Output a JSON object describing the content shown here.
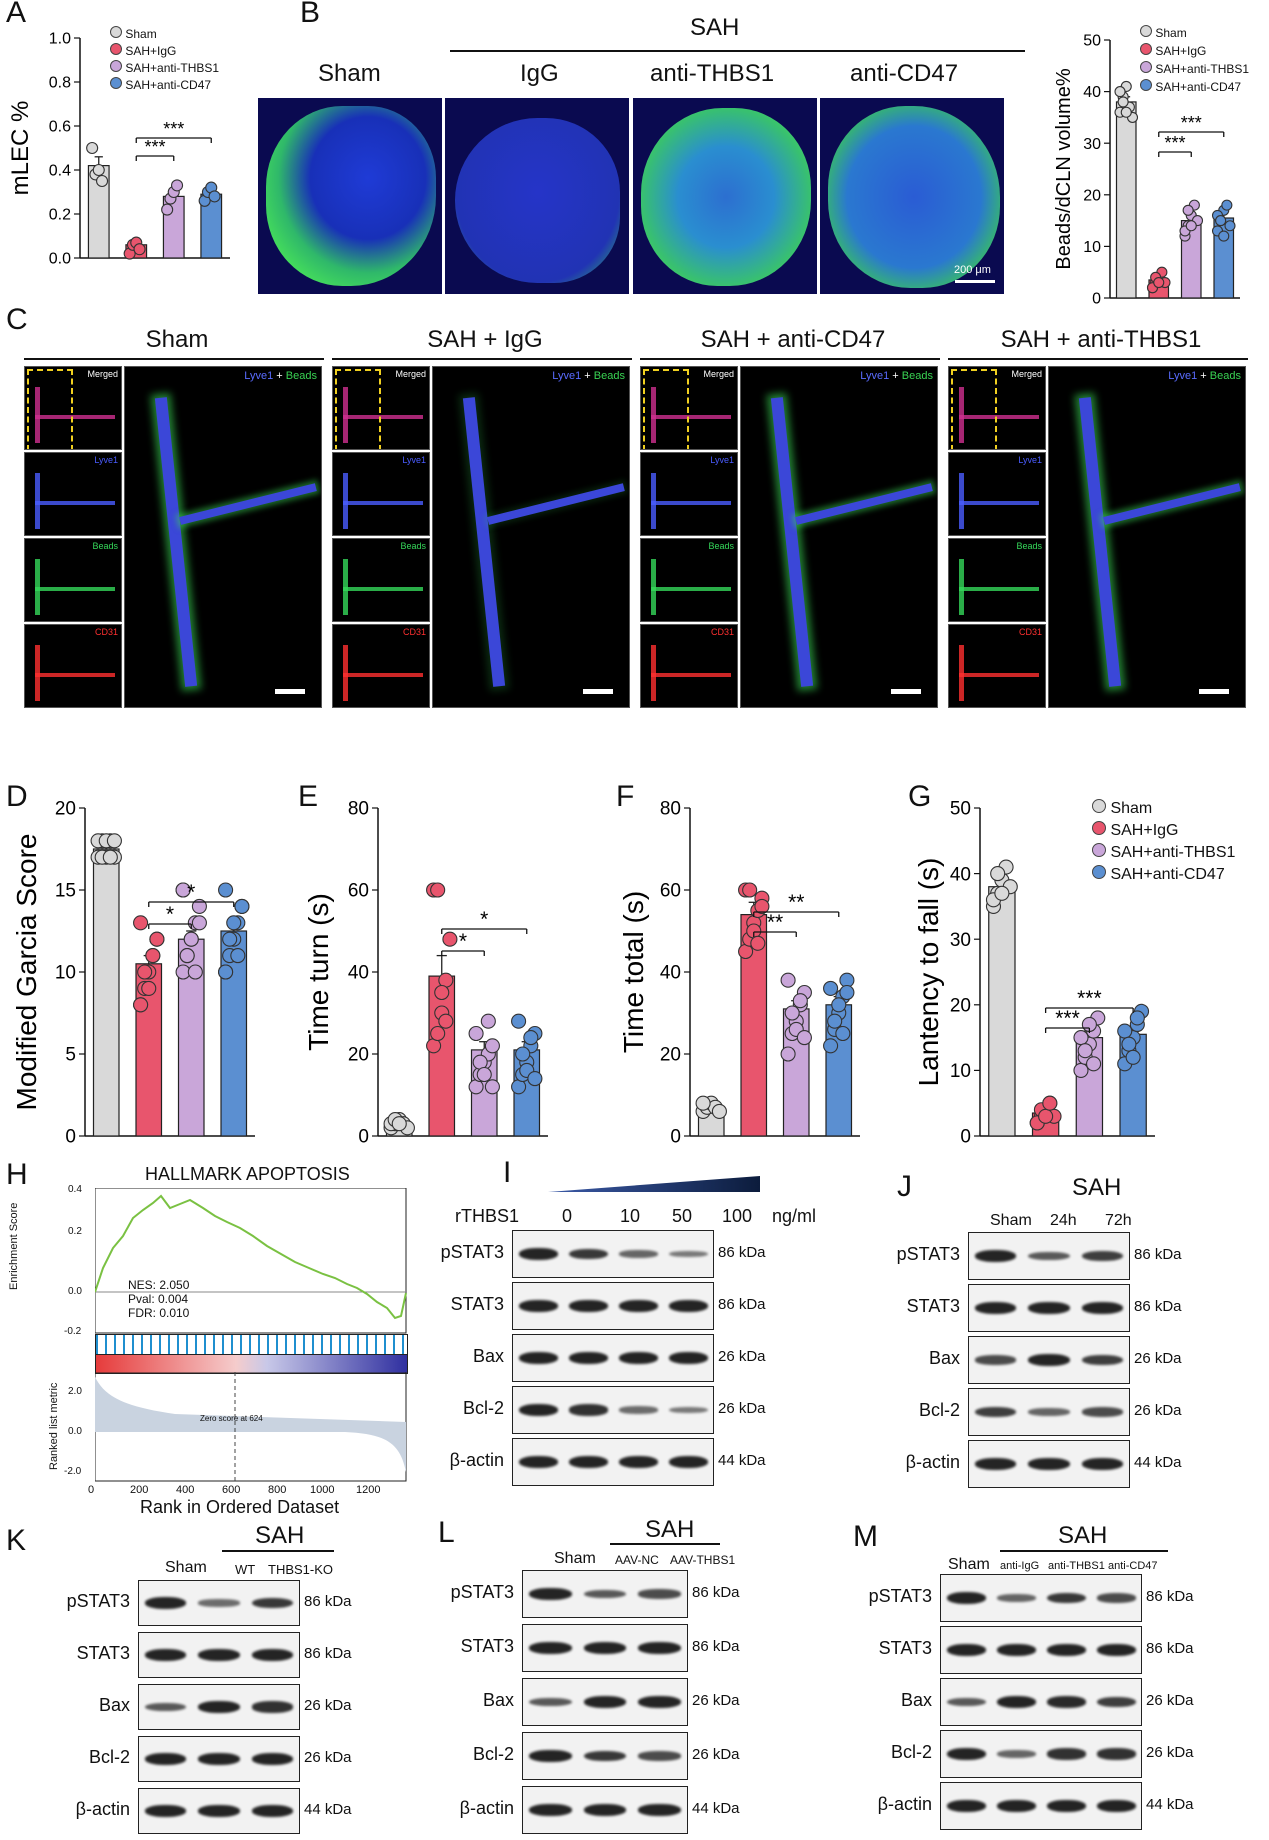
{
  "panels": {
    "A": {
      "letter": "A",
      "ylabel": "mLEC %",
      "yticks": [
        "0.0",
        "0.2",
        "0.4",
        "0.6",
        "0.8",
        "1.0"
      ],
      "legend": [
        "Sham",
        "SAH+IgG",
        "SAH+anti-THBS1",
        "SAH+anti-CD47"
      ],
      "sig": [
        "***",
        "***"
      ]
    },
    "B": {
      "letter": "B",
      "group": "SAH",
      "images": [
        "Sham",
        "IgG",
        "anti-THBS1",
        "anti-CD47"
      ],
      "scale": "200 μm",
      "ylabel": "Beads/dCLN volume%",
      "yticks": [
        "0",
        "10",
        "20",
        "30",
        "40",
        "50"
      ],
      "legend": [
        "Sham",
        "SAH+IgG",
        "SAH+anti-THBS1",
        "SAH+anti-CD47"
      ],
      "sig": [
        "***",
        "***"
      ]
    },
    "C": {
      "letter": "C",
      "titles": [
        "Sham",
        "SAH + IgG",
        "SAH + anti-CD47",
        "SAH + anti-THBS1"
      ],
      "subs": [
        "Merged",
        "Lyve1",
        "Beads",
        "CD31"
      ],
      "big_a": "Lyve1",
      "big_plus": " + ",
      "big_b": "Beads"
    },
    "D": {
      "letter": "D",
      "ylabel": "Modified Garcia Score",
      "yticks": [
        "0",
        "5",
        "10",
        "15",
        "20"
      ],
      "sig": [
        "*",
        "*"
      ]
    },
    "E": {
      "letter": "E",
      "ylabel": "Time turn (s)",
      "yticks": [
        "0",
        "20",
        "40",
        "60",
        "80"
      ],
      "sig": [
        "*",
        "*"
      ]
    },
    "F": {
      "letter": "F",
      "ylabel": "Time total (s)",
      "yticks": [
        "0",
        "20",
        "40",
        "60",
        "80"
      ],
      "sig": [
        "**",
        "**"
      ]
    },
    "G": {
      "letter": "G",
      "ylabel": "Lantency to fall (s)",
      "yticks": [
        "0",
        "10",
        "20",
        "30",
        "40",
        "50"
      ],
      "legend": [
        "Sham",
        "SAH+IgG",
        "SAH+anti-THBS1",
        "SAH+anti-CD47"
      ],
      "sig": [
        "***",
        "***"
      ]
    },
    "H": {
      "letter": "H",
      "title": "HALLMARK APOPTOSIS",
      "es_label": "Enrichment Score",
      "es_ticks": [
        "0.4",
        "0.2",
        "0.0",
        "-0.2"
      ],
      "stats": [
        "NES: 2.050",
        "Pval: 0.004",
        "FDR: 0.010"
      ],
      "rank_label": "Ranked list metric",
      "rank_ticks": [
        "2.0",
        "0.0",
        "-2.0"
      ],
      "zero_note": "Zero score at 624",
      "xticks": [
        "0",
        "200",
        "400",
        "600",
        "800",
        "1000",
        "1200"
      ],
      "xlabel": "Rank in Ordered Dataset"
    },
    "I": {
      "letter": "I",
      "treat": "rTHBS1",
      "doses": [
        "0",
        "10",
        "50",
        "100"
      ],
      "unit": "ng/ml",
      "rows": [
        "pSTAT3",
        "STAT3",
        "Bax",
        "Bcl-2",
        "β-actin"
      ],
      "kda": [
        "86 kDa",
        "86 kDa",
        "26 kDa",
        "26 kDa",
        "44 kDa"
      ]
    },
    "J": {
      "letter": "J",
      "group": "SAH",
      "lanes": [
        "Sham",
        "24h",
        "72h"
      ],
      "rows": [
        "pSTAT3",
        "STAT3",
        "Bax",
        "Bcl-2",
        "β-actin"
      ],
      "kda": [
        "86 kDa",
        "86 kDa",
        "26 kDa",
        "26 kDa",
        "44 kDa"
      ]
    },
    "K": {
      "letter": "K",
      "group": "SAH",
      "lanes": [
        "Sham",
        "WT",
        "THBS1-KO"
      ],
      "rows": [
        "pSTAT3",
        "STAT3",
        "Bax",
        "Bcl-2",
        "β-actin"
      ],
      "kda": [
        "86 kDa",
        "86 kDa",
        "26 kDa",
        "26 kDa",
        "44 kDa"
      ]
    },
    "L": {
      "letter": "L",
      "group": "SAH",
      "lanes": [
        "Sham",
        "AAV-NC",
        "AAV-THBS1"
      ],
      "rows": [
        "pSTAT3",
        "STAT3",
        "Bax",
        "Bcl-2",
        "β-actin"
      ],
      "kda": [
        "86 kDa",
        "86 kDa",
        "26 kDa",
        "26 kDa",
        "44 kDa"
      ]
    },
    "M": {
      "letter": "M",
      "group": "SAH",
      "lanes": [
        "Sham",
        "anti-IgG",
        "anti-THBS1",
        "anti-CD47"
      ],
      "rows": [
        "pSTAT3",
        "STAT3",
        "Bax",
        "Bcl-2",
        "β-actin"
      ],
      "kda": [
        "86 kDa",
        "86 kDa",
        "26 kDa",
        "26 kDa",
        "44 kDa"
      ]
    }
  },
  "colors": {
    "sham": "#d9d9d9",
    "igg": "#e8556d",
    "thbs1": "#c9a6d9",
    "cd47": "#5b8fd1",
    "green": "#39d353",
    "blue": "#2a3bc4"
  },
  "chart_data": [
    {
      "panel": "A",
      "type": "bar",
      "categories": [
        "Sham",
        "SAH+IgG",
        "SAH+anti-THBS1",
        "SAH+anti-CD47"
      ],
      "values": [
        0.42,
        0.06,
        0.28,
        0.29
      ],
      "errors": [
        0.04,
        0.01,
        0.03,
        0.02
      ],
      "ylim": [
        0,
        1.0
      ],
      "ylabel": "mLEC %",
      "points": [
        [
          0.5,
          0.38,
          0.4,
          0.35
        ],
        [
          0.02,
          0.06,
          0.07,
          0.04
        ],
        [
          0.22,
          0.27,
          0.3,
          0.33
        ],
        [
          0.26,
          0.3,
          0.32,
          0.28
        ]
      ],
      "sig": [
        {
          "a": 1,
          "b": 2,
          "label": "***"
        },
        {
          "a": 1,
          "b": 3,
          "label": "***"
        }
      ]
    },
    {
      "panel": "B",
      "type": "bar",
      "categories": [
        "Sham",
        "SAH+IgG",
        "SAH+anti-THBS1",
        "SAH+anti-CD47"
      ],
      "values": [
        38,
        3.5,
        15,
        15.5
      ],
      "errors": [
        1,
        0.5,
        1,
        1
      ],
      "ylim": [
        0,
        50
      ],
      "ylabel": "Beads/dCLN volume%",
      "points": [
        [
          36,
          39,
          41,
          37,
          35,
          40,
          38,
          36
        ],
        [
          2,
          3,
          4,
          5,
          3,
          2,
          4,
          3
        ],
        [
          12,
          14,
          16,
          18,
          15,
          13,
          17,
          14
        ],
        [
          13,
          15,
          17,
          18,
          14,
          16,
          15,
          12
        ]
      ],
      "sig": [
        {
          "a": 1,
          "b": 2,
          "label": "***"
        },
        {
          "a": 1,
          "b": 3,
          "label": "***"
        }
      ]
    },
    {
      "panel": "D",
      "type": "bar",
      "categories": [
        "Sham",
        "SAH+IgG",
        "SAH+anti-THBS1",
        "SAH+anti-CD47"
      ],
      "values": [
        17.5,
        10.5,
        12,
        12.5
      ],
      "errors": [
        0.2,
        0.5,
        0.5,
        0.5
      ],
      "ylim": [
        0,
        20
      ],
      "ylabel": "Modified Garcia Score",
      "points": [
        [
          17,
          18,
          17,
          18,
          17,
          18,
          17,
          18,
          17,
          18
        ],
        [
          8,
          9,
          10,
          11,
          12,
          13,
          10,
          9,
          11,
          12,
          8
        ],
        [
          10,
          11,
          12,
          13,
          14,
          15,
          11,
          12,
          10,
          13,
          15
        ],
        [
          10,
          11,
          12,
          13,
          14,
          15,
          12,
          13,
          11,
          14,
          10
        ]
      ],
      "sig": [
        {
          "a": 1,
          "b": 2,
          "label": "*"
        },
        {
          "a": 1,
          "b": 3,
          "label": "*"
        }
      ]
    },
    {
      "panel": "E",
      "type": "bar",
      "categories": [
        "Sham",
        "SAH+IgG",
        "SAH+anti-THBS1",
        "SAH+anti-CD47"
      ],
      "values": [
        3,
        39,
        21,
        21
      ],
      "errors": [
        0.5,
        5,
        2,
        2
      ],
      "ylim": [
        0,
        80
      ],
      "ylabel": "Time turn (s)",
      "points": [
        [
          2,
          3,
          4,
          3,
          2,
          3,
          4,
          3
        ],
        [
          22,
          25,
          30,
          38,
          48,
          60,
          60,
          35,
          28
        ],
        [
          12,
          15,
          18,
          20,
          22,
          25,
          18,
          15,
          28,
          12
        ],
        [
          12,
          15,
          18,
          22,
          25,
          28,
          20,
          16,
          24,
          14
        ]
      ],
      "sig": [
        {
          "a": 1,
          "b": 2,
          "label": "*"
        },
        {
          "a": 1,
          "b": 3,
          "label": "*"
        }
      ]
    },
    {
      "panel": "F",
      "type": "bar",
      "categories": [
        "Sham",
        "SAH+IgG",
        "SAH+anti-THBS1",
        "SAH+anti-CD47"
      ],
      "values": [
        7,
        54,
        31,
        32
      ],
      "errors": [
        0.5,
        3,
        2,
        2
      ],
      "ylim": [
        0,
        80
      ],
      "ylabel": "Time total (s)",
      "points": [
        [
          6,
          7,
          8,
          7,
          6,
          8
        ],
        [
          45,
          48,
          52,
          55,
          58,
          60,
          60,
          50,
          47,
          56
        ],
        [
          20,
          25,
          28,
          32,
          35,
          38,
          30,
          26,
          33,
          24
        ],
        [
          22,
          26,
          30,
          34,
          38,
          36,
          28,
          32,
          25,
          35
        ]
      ],
      "sig": [
        {
          "a": 1,
          "b": 2,
          "label": "**"
        },
        {
          "a": 1,
          "b": 3,
          "label": "**"
        }
      ]
    },
    {
      "panel": "G",
      "type": "bar",
      "categories": [
        "Sham",
        "SAH+IgG",
        "SAH+anti-THBS1",
        "SAH+anti-CD47"
      ],
      "values": [
        38,
        3.5,
        15,
        15.5
      ],
      "errors": [
        1,
        0.5,
        1,
        1
      ],
      "ylim": [
        0,
        50
      ],
      "ylabel": "Lantency to fall (s)",
      "points": [
        [
          35,
          37,
          39,
          41,
          38,
          36,
          40,
          37
        ],
        [
          2,
          3,
          4,
          5,
          3,
          2,
          4,
          3,
          5
        ],
        [
          10,
          12,
          14,
          16,
          18,
          15,
          13,
          17,
          11
        ],
        [
          11,
          13,
          15,
          17,
          19,
          16,
          14,
          12,
          18
        ]
      ],
      "sig": [
        {
          "a": 1,
          "b": 2,
          "label": "***"
        },
        {
          "a": 1,
          "b": 3,
          "label": "***"
        }
      ]
    }
  ]
}
